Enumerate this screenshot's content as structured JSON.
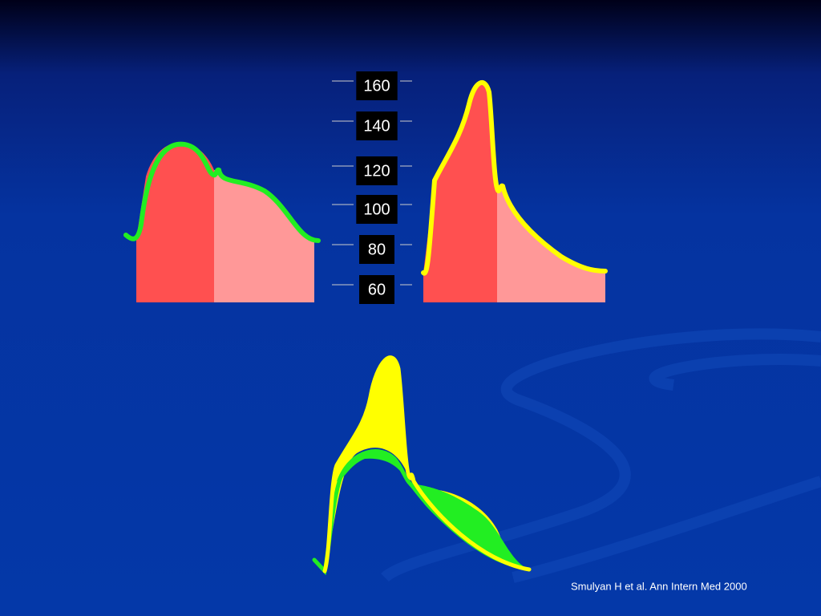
{
  "scale": {
    "labels": [
      160,
      140,
      120,
      100,
      80,
      60
    ]
  },
  "citation": "Smulyan H et al. Ann Intern Med 2000"
}
